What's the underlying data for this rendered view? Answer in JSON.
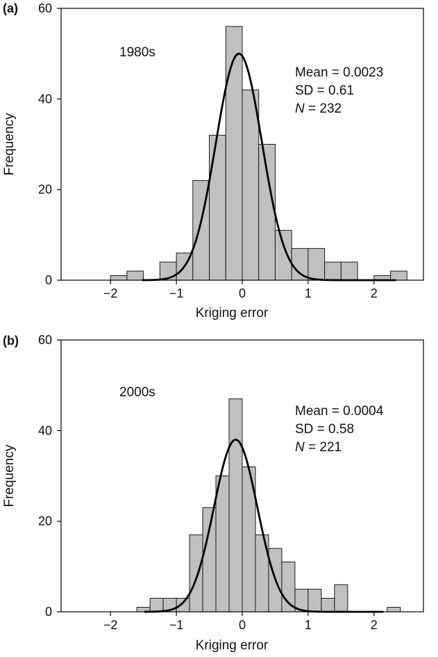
{
  "chart_data": [
    {
      "type": "bar",
      "panel_label": "(a)",
      "title": "1980s",
      "xlabel": "Kriging error",
      "ylabel": "Frequency",
      "xlim": [
        -2.75,
        2.75
      ],
      "ylim": [
        0,
        60
      ],
      "xticks": [
        -2,
        -1,
        0,
        1,
        2
      ],
      "xtick_labels": [
        "−2",
        "−1",
        "0",
        "1",
        "2"
      ],
      "yticks": [
        0,
        20,
        40,
        60
      ],
      "ytick_labels": [
        "0",
        "20",
        "40",
        "60"
      ],
      "bin_width": 0.25,
      "bins": [
        {
          "x0": -2.0,
          "count": 1
        },
        {
          "x0": -1.75,
          "count": 2
        },
        {
          "x0": -1.5,
          "count": 0
        },
        {
          "x0": -1.25,
          "count": 4
        },
        {
          "x0": -1.0,
          "count": 6
        },
        {
          "x0": -0.75,
          "count": 22
        },
        {
          "x0": -0.5,
          "count": 32
        },
        {
          "x0": -0.25,
          "count": 56
        },
        {
          "x0": 0.0,
          "count": 42
        },
        {
          "x0": 0.25,
          "count": 30
        },
        {
          "x0": 0.5,
          "count": 11
        },
        {
          "x0": 0.75,
          "count": 7
        },
        {
          "x0": 1.0,
          "count": 7
        },
        {
          "x0": 1.25,
          "count": 4
        },
        {
          "x0": 1.5,
          "count": 4
        },
        {
          "x0": 1.75,
          "count": 0
        },
        {
          "x0": 2.0,
          "count": 1
        },
        {
          "x0": 2.25,
          "count": 2
        }
      ],
      "curve": {
        "type": "normal",
        "peak_x": -0.05,
        "peak_y": 50,
        "sd": 0.35
      },
      "stats": {
        "mean": "Mean = 0.0023",
        "sd": "SD = 0.61",
        "n_symbol": "N",
        "n_value": "= 232"
      }
    },
    {
      "type": "bar",
      "panel_label": "(b)",
      "title": "2000s",
      "xlabel": "Kriging error",
      "ylabel": "Frequency",
      "xlim": [
        -2.75,
        2.75
      ],
      "ylim": [
        0,
        60
      ],
      "xticks": [
        -2,
        -1,
        0,
        1,
        2
      ],
      "xtick_labels": [
        "−2",
        "−1",
        "0",
        "1",
        "2"
      ],
      "yticks": [
        0,
        20,
        40,
        60
      ],
      "ytick_labels": [
        "0",
        "20",
        "40",
        "60"
      ],
      "bin_width": 0.2,
      "bins": [
        {
          "x0": -1.6,
          "count": 1
        },
        {
          "x0": -1.4,
          "count": 3
        },
        {
          "x0": -1.2,
          "count": 3
        },
        {
          "x0": -1.0,
          "count": 3
        },
        {
          "x0": -0.8,
          "count": 17
        },
        {
          "x0": -0.6,
          "count": 23
        },
        {
          "x0": -0.4,
          "count": 30
        },
        {
          "x0": -0.2,
          "count": 47
        },
        {
          "x0": 0.0,
          "count": 32
        },
        {
          "x0": 0.2,
          "count": 17
        },
        {
          "x0": 0.4,
          "count": 14
        },
        {
          "x0": 0.6,
          "count": 11
        },
        {
          "x0": 0.8,
          "count": 5
        },
        {
          "x0": 1.0,
          "count": 5
        },
        {
          "x0": 1.2,
          "count": 3
        },
        {
          "x0": 1.4,
          "count": 6
        },
        {
          "x0": 1.6,
          "count": 0
        },
        {
          "x0": 1.8,
          "count": 0
        },
        {
          "x0": 2.0,
          "count": 0
        },
        {
          "x0": 2.2,
          "count": 1
        }
      ],
      "curve": {
        "type": "normal",
        "peak_x": -0.1,
        "peak_y": 38,
        "sd": 0.33
      },
      "stats": {
        "mean": "Mean = 0.0004",
        "sd": "SD = 0.58",
        "n_symbol": "N",
        "n_value": "= 221"
      }
    }
  ],
  "colors": {
    "bar_fill": "#c0c0c0",
    "bar_stroke": "#1a1a1a",
    "curve": "#000000",
    "axis": "#000000",
    "background": "#ffffff"
  }
}
